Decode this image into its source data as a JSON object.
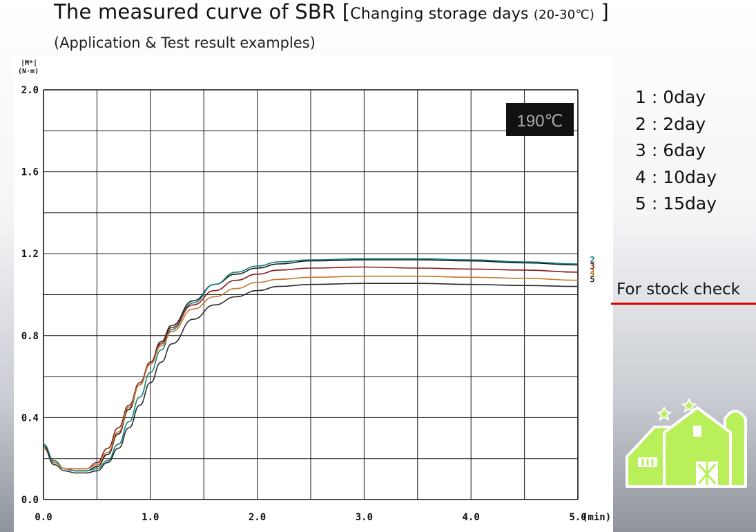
{
  "header": {
    "title_main": "The measured curve of SBR ",
    "title_bracket_open": "[",
    "title_bracket_text": "Changing storage days ",
    "title_bracket_temp": "(20-30℃)",
    "title_bracket_close": " ]",
    "subtitle": "(Application & Test result examples)"
  },
  "temperature_badge": "190℃",
  "legend": [
    "1 : 0day",
    "2 : 2day",
    "3 : 6day",
    "4 : 10day",
    "5 : 15day"
  ],
  "stock_label": "For stock check",
  "chart_data": {
    "type": "line",
    "ylabel": "|M*| (N·m)",
    "ylabel_line1": "|M*|",
    "ylabel_line2": "(N·m)",
    "xunit": "(min)",
    "xlim": [
      0,
      5
    ],
    "ylim": [
      0,
      2
    ],
    "xticks": [
      "0.0",
      "1.0",
      "2.0",
      "3.0",
      "4.0",
      "5.0"
    ],
    "yticks": [
      "0.0",
      "0.4",
      "0.8",
      "1.2",
      "1.6",
      "2.0"
    ],
    "grid": true,
    "end_labels": [
      "2",
      "3",
      "4",
      "5"
    ],
    "series": [
      {
        "name": "1",
        "color": "#1a1a1a",
        "x": [
          0,
          0.1,
          0.2,
          0.3,
          0.4,
          0.5,
          0.6,
          0.7,
          0.8,
          0.9,
          1.0,
          1.1,
          1.2,
          1.4,
          1.6,
          1.8,
          2.0,
          2.2,
          2.5,
          3.0,
          3.5,
          4.0,
          4.5,
          5.0
        ],
        "y": [
          0.27,
          0.18,
          0.15,
          0.14,
          0.14,
          0.16,
          0.22,
          0.32,
          0.44,
          0.56,
          0.67,
          0.77,
          0.85,
          0.97,
          1.05,
          1.1,
          1.13,
          1.15,
          1.165,
          1.17,
          1.17,
          1.165,
          1.155,
          1.145
        ]
      },
      {
        "name": "2",
        "color": "#13807a",
        "x": [
          0,
          0.1,
          0.2,
          0.3,
          0.4,
          0.5,
          0.6,
          0.7,
          0.8,
          0.9,
          1.0,
          1.1,
          1.2,
          1.4,
          1.6,
          1.8,
          2.0,
          2.2,
          2.5,
          3.0,
          3.5,
          4.0,
          4.5,
          5.0
        ],
        "y": [
          0.27,
          0.19,
          0.15,
          0.14,
          0.14,
          0.15,
          0.19,
          0.27,
          0.38,
          0.5,
          0.62,
          0.73,
          0.83,
          0.96,
          1.05,
          1.11,
          1.14,
          1.16,
          1.17,
          1.175,
          1.175,
          1.17,
          1.16,
          1.15
        ]
      },
      {
        "name": "3",
        "color": "#8b1a1a",
        "x": [
          0,
          0.1,
          0.2,
          0.3,
          0.4,
          0.5,
          0.6,
          0.7,
          0.8,
          0.9,
          1.0,
          1.1,
          1.2,
          1.4,
          1.6,
          1.8,
          2.0,
          2.2,
          2.5,
          3.0,
          3.5,
          4.0,
          4.5,
          5.0
        ],
        "y": [
          0.25,
          0.18,
          0.15,
          0.15,
          0.15,
          0.18,
          0.25,
          0.35,
          0.46,
          0.57,
          0.67,
          0.76,
          0.84,
          0.95,
          1.02,
          1.07,
          1.1,
          1.12,
          1.13,
          1.135,
          1.13,
          1.125,
          1.12,
          1.11
        ]
      },
      {
        "name": "4",
        "color": "#c2792a",
        "x": [
          0,
          0.1,
          0.2,
          0.3,
          0.4,
          0.5,
          0.6,
          0.7,
          0.8,
          0.9,
          1.0,
          1.1,
          1.2,
          1.4,
          1.6,
          1.8,
          2.0,
          2.2,
          2.5,
          3.0,
          3.5,
          4.0,
          4.5,
          5.0
        ],
        "y": [
          0.25,
          0.18,
          0.15,
          0.15,
          0.15,
          0.17,
          0.23,
          0.33,
          0.45,
          0.56,
          0.66,
          0.75,
          0.82,
          0.93,
          0.99,
          1.03,
          1.06,
          1.075,
          1.085,
          1.09,
          1.09,
          1.085,
          1.08,
          1.07
        ]
      },
      {
        "name": "5",
        "color": "#2a2a2a",
        "x": [
          0,
          0.1,
          0.2,
          0.3,
          0.4,
          0.5,
          0.6,
          0.7,
          0.8,
          0.9,
          1.0,
          1.1,
          1.2,
          1.4,
          1.6,
          1.8,
          2.0,
          2.2,
          2.5,
          3.0,
          3.5,
          4.0,
          4.5,
          5.0
        ],
        "y": [
          0.26,
          0.17,
          0.14,
          0.13,
          0.13,
          0.14,
          0.18,
          0.25,
          0.35,
          0.46,
          0.57,
          0.67,
          0.76,
          0.88,
          0.95,
          0.99,
          1.02,
          1.04,
          1.05,
          1.055,
          1.055,
          1.05,
          1.045,
          1.04
        ]
      }
    ]
  }
}
